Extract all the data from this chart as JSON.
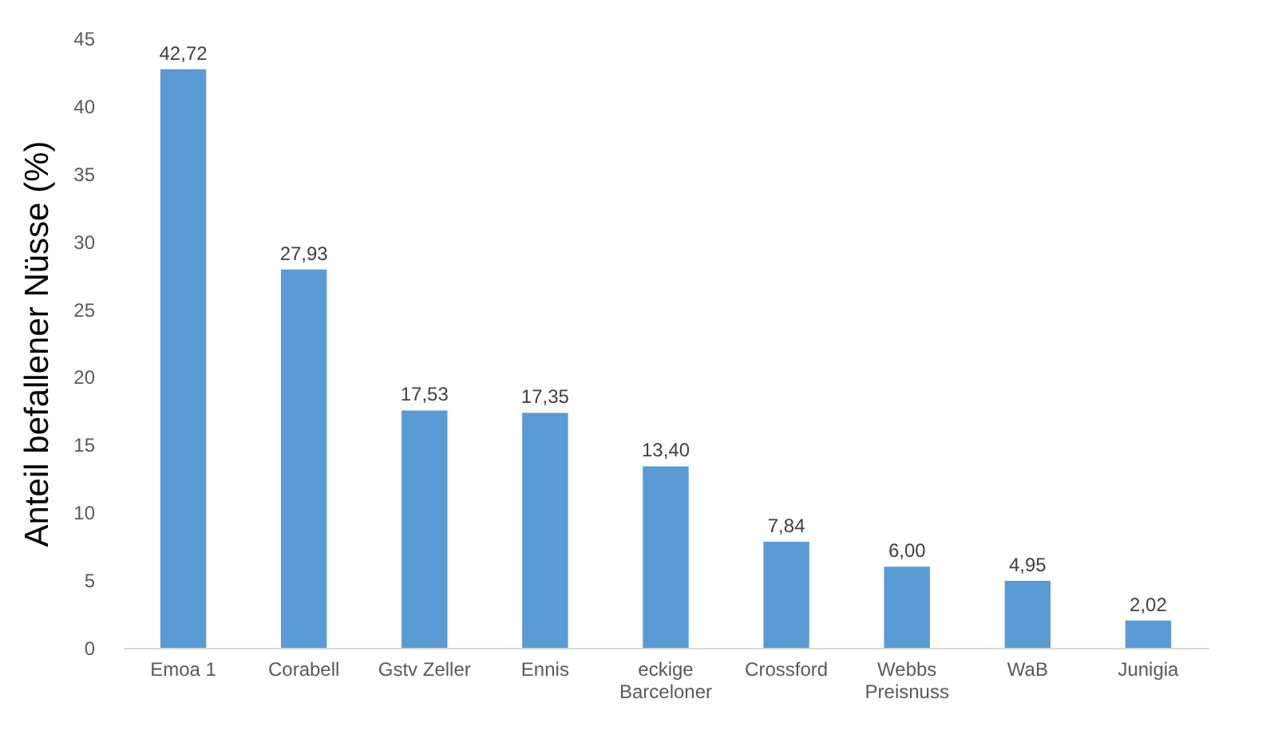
{
  "chart_data": {
    "type": "bar",
    "ylabel": "Anteil befallener Nüsse (%)",
    "categories": [
      "Emoa 1",
      "Corabell",
      "Gstv Zeller",
      "Ennis",
      "eckige Barceloner",
      "Crossford",
      "Webbs Preisnuss",
      "WaB",
      "Junigia"
    ],
    "values": [
      42.72,
      27.93,
      17.53,
      17.35,
      13.4,
      7.84,
      6.0,
      4.95,
      2.02
    ],
    "value_labels": [
      "42,72",
      "27,93",
      "17,53",
      "17,35",
      "13,40",
      "7,84",
      "6,00",
      "4,95",
      "2,02"
    ],
    "color": "#5b9bd5",
    "ylim": [
      0,
      45
    ],
    "yticks": [
      0,
      5,
      10,
      15,
      20,
      25,
      30,
      35,
      40,
      45
    ],
    "grid": false
  }
}
